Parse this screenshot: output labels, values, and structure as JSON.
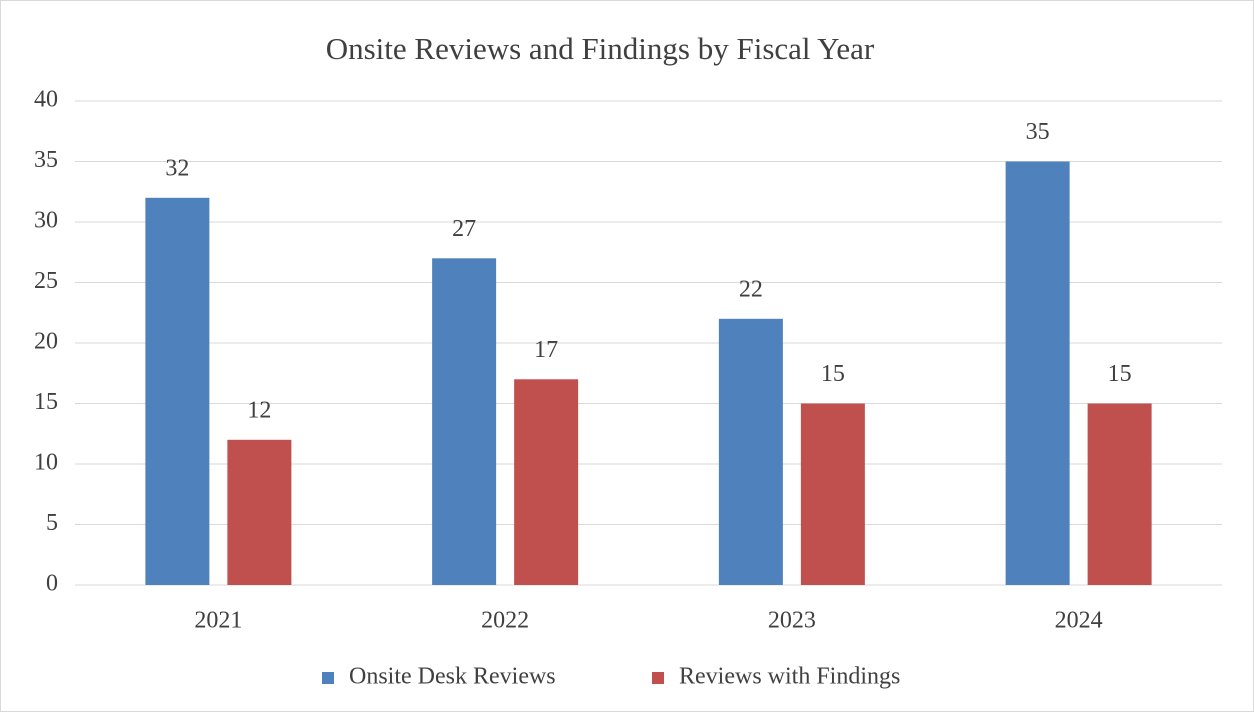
{
  "chart_data": {
    "type": "bar",
    "title": "Onsite Reviews and Findings by Fiscal Year",
    "categories": [
      "2021",
      "2022",
      "2023",
      "2024"
    ],
    "series": [
      {
        "name": "Onsite Desk Reviews",
        "color": "#4f81bd",
        "values": [
          32,
          27,
          22,
          35
        ]
      },
      {
        "name": "Reviews with Findings",
        "color": "#c0504d",
        "values": [
          12,
          17,
          15,
          15
        ]
      }
    ],
    "ylim": [
      0,
      40
    ],
    "yticks": [
      0,
      5,
      10,
      15,
      20,
      25,
      30,
      35,
      40
    ],
    "grid": true,
    "legend": "bottom"
  }
}
